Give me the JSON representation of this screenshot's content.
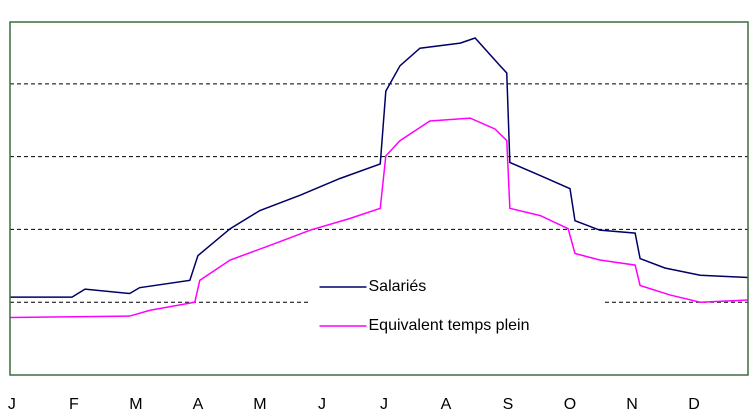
{
  "chart_data": {
    "type": "line",
    "categories": [
      "J",
      "F",
      "M",
      "A",
      "M",
      "J",
      "J",
      "A",
      "S",
      "O",
      "N",
      "D"
    ],
    "xlim": [
      -0.03,
      11.87
    ],
    "ylim": [
      0,
      4.85
    ],
    "yticks": [
      1,
      2,
      3,
      4
    ],
    "grid": true,
    "legend": "bottom-center",
    "series": [
      {
        "name": "Salariés",
        "color": "#000066",
        "x": [
          -0.03,
          0.97,
          1.18,
          1.9,
          2.06,
          2.87,
          3.0,
          3.52,
          4.0,
          4.65,
          5.29,
          5.94,
          6.03,
          6.26,
          6.58,
          7.23,
          7.47,
          7.87,
          7.98,
          8.03,
          8.52,
          9.0,
          9.08,
          9.48,
          10.05,
          10.13,
          10.53,
          11.1,
          11.87
        ],
        "values": [
          1.07,
          1.07,
          1.18,
          1.12,
          1.2,
          1.3,
          1.64,
          2.01,
          2.26,
          2.47,
          2.7,
          2.9,
          3.9,
          4.25,
          4.49,
          4.56,
          4.63,
          4.25,
          4.15,
          2.92,
          2.74,
          2.56,
          2.12,
          1.99,
          1.95,
          1.6,
          1.47,
          1.37,
          1.34
        ]
      },
      {
        "name": "Equivalent temps plein",
        "color": "#ff00ff",
        "x": [
          -0.03,
          1.9,
          2.23,
          2.95,
          3.03,
          3.52,
          4.16,
          4.81,
          5.45,
          5.94,
          6.03,
          6.26,
          6.74,
          7.39,
          7.79,
          7.98,
          8.03,
          8.52,
          8.97,
          9.08,
          9.48,
          10.05,
          10.13,
          10.61,
          11.1,
          11.87
        ],
        "values": [
          0.79,
          0.81,
          0.89,
          1.0,
          1.3,
          1.58,
          1.78,
          1.99,
          2.15,
          2.29,
          3.01,
          3.22,
          3.49,
          3.53,
          3.38,
          3.22,
          2.29,
          2.19,
          2.01,
          1.67,
          1.58,
          1.51,
          1.23,
          1.1,
          1.0,
          1.03
        ]
      }
    ]
  }
}
